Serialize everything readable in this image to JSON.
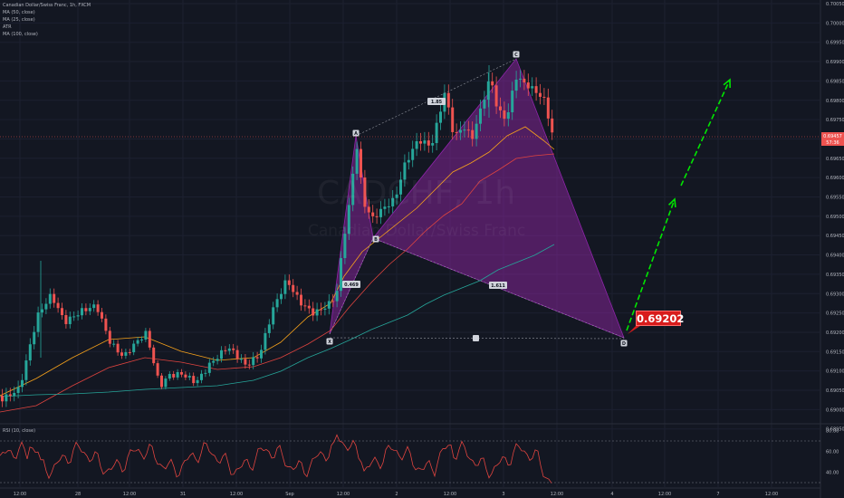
{
  "header": {
    "symbol_line": "Canadian Dollar/Swiss Franc, 1h, FXCM",
    "indicators": [
      "MA (50, close)",
      "MA (25, close)",
      "ATR",
      "MA (100, close)"
    ]
  },
  "watermark": {
    "ticker": "CADCHF, 1h",
    "name": "Canadian Dollar/Swiss Franc"
  },
  "price_tag": {
    "price": "0.69457",
    "countdown": "57:36"
  },
  "callout": "0.69202",
  "pattern_points": [
    "X",
    "A",
    "B",
    "C",
    "D"
  ],
  "pattern_ratios": [
    "0.469",
    "1.85",
    "1.611"
  ],
  "rsi_label": "RSI (10, close)",
  "colors": {
    "background": "#131722",
    "up": "#26a69a",
    "down": "#ef5350",
    "pattern": "#9c27b0",
    "arrow": "#00e600",
    "callout": "#d81c1c"
  },
  "chart_data": {
    "type": "candlestick",
    "y_ticks": [
      "0.70050",
      "0.70000",
      "0.69950",
      "0.69900",
      "0.69850",
      "0.69800",
      "0.69750",
      "0.69700",
      "0.69650",
      "0.69600",
      "0.69550",
      "0.69500",
      "0.69450",
      "0.69400",
      "0.69350",
      "0.69300",
      "0.69250",
      "0.69200",
      "0.69150",
      "0.69100",
      "0.69050",
      "0.69000",
      "0.68950"
    ],
    "x_ticks": [
      "12:00",
      "28",
      "12:00",
      "31",
      "12:00",
      "Sep",
      "12:00",
      "2",
      "12:00",
      "3",
      "12:00",
      "4",
      "12:00",
      "7",
      "12:00"
    ],
    "rsi_ticks": [
      "80.00",
      "60.00",
      "40.00"
    ],
    "rsi_levels": [
      70,
      30
    ],
    "ylim": [
      0.68925,
      0.7006
    ],
    "pattern": {
      "X": 0.69187,
      "A": 0.69703,
      "B": 0.69473,
      "C": 0.69905,
      "D": 0.69187
    },
    "target_arrows": [
      {
        "from": 0.6905,
        "to": 0.6955
      },
      {
        "from": 0.696,
        "to": 0.6987
      }
    ],
    "series": [
      {
        "name": "MA (25, close)",
        "color": "#f7a21b"
      },
      {
        "name": "MA (50, close)",
        "color": "#e0443f"
      },
      {
        "name": "MA (100, close)",
        "color": "#26a69a"
      },
      {
        "name": "ATR",
        "color": "#2962ff"
      }
    ]
  }
}
